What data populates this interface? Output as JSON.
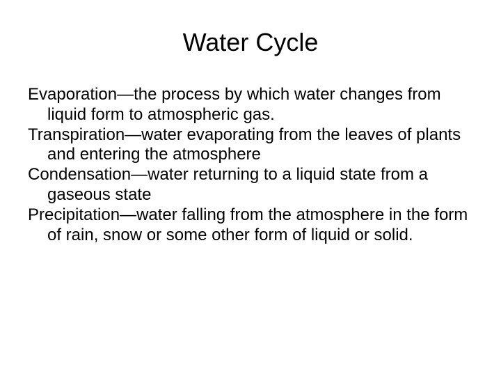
{
  "title": "Water Cycle",
  "definitions": [
    {
      "text": "Evaporation—the process by which water changes from liquid form to atmospheric gas."
    },
    {
      "text": "Transpiration—water evaporating from the leaves of plants and entering the atmosphere"
    },
    {
      "text": "Condensation—water returning to a liquid state from a gaseous state"
    },
    {
      "text": "Precipitation—water falling from the atmosphere in the form of rain, snow or some other form of liquid or solid."
    }
  ],
  "colors": {
    "background": "#ffffff",
    "text": "#000000"
  },
  "typography": {
    "title_fontsize": 36,
    "body_fontsize": 24,
    "font_family": "Arial"
  }
}
